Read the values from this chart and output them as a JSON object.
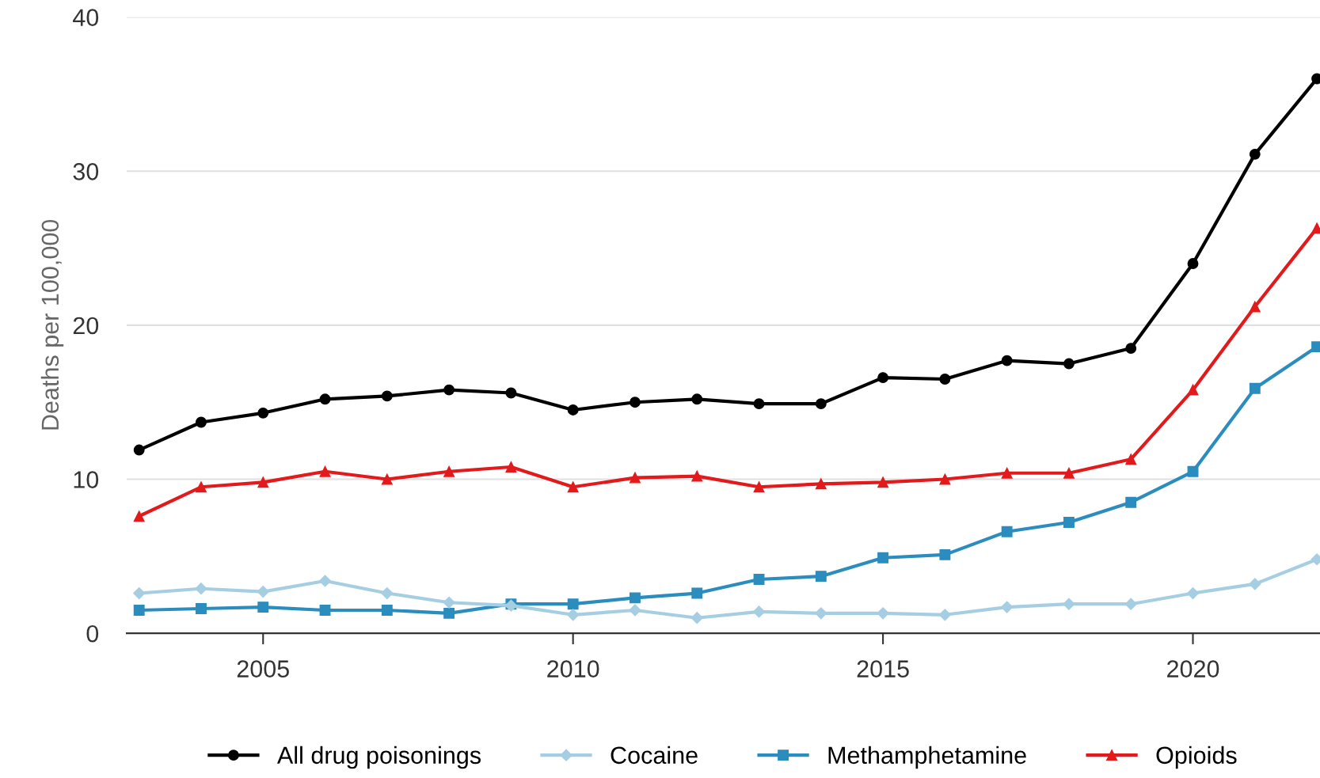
{
  "chart_data": {
    "type": "line",
    "ylabel": "Deaths per 100,000",
    "x": [
      2003,
      2004,
      2005,
      2006,
      2007,
      2008,
      2009,
      2010,
      2011,
      2012,
      2013,
      2014,
      2015,
      2016,
      2017,
      2018,
      2019,
      2020,
      2021,
      2022
    ],
    "series": [
      {
        "name": "All drug poisonings",
        "color": "#000000",
        "marker": "circle",
        "values": [
          11.9,
          13.7,
          14.3,
          15.2,
          15.4,
          15.8,
          15.6,
          14.5,
          15.0,
          15.2,
          14.9,
          14.9,
          16.6,
          16.5,
          17.7,
          17.5,
          18.5,
          24.0,
          31.1,
          36.0
        ]
      },
      {
        "name": "Cocaine",
        "color": "#a6cee3",
        "marker": "diamond",
        "values": [
          2.6,
          2.9,
          2.7,
          3.4,
          2.6,
          2.0,
          1.8,
          1.2,
          1.5,
          1.0,
          1.4,
          1.3,
          1.3,
          1.2,
          1.7,
          1.9,
          1.9,
          2.6,
          3.2,
          4.8
        ]
      },
      {
        "name": "Methamphetamine",
        "color": "#2b8cbe",
        "marker": "square",
        "values": [
          1.5,
          1.6,
          1.7,
          1.5,
          1.5,
          1.3,
          1.9,
          1.9,
          2.3,
          2.6,
          3.5,
          3.7,
          4.9,
          5.1,
          6.6,
          7.2,
          8.5,
          10.5,
          15.9,
          18.6
        ]
      },
      {
        "name": "Opioids",
        "color": "#e31a1c",
        "marker": "triangle",
        "values": [
          7.6,
          9.5,
          9.8,
          10.5,
          10.0,
          10.5,
          10.8,
          9.5,
          10.1,
          10.2,
          9.5,
          9.7,
          9.8,
          10.0,
          10.4,
          10.4,
          11.3,
          15.8,
          21.2,
          26.3
        ]
      }
    ],
    "xlim": [
      2002.8,
      2022.05
    ],
    "xticks": [
      2005,
      2010,
      2015,
      2020
    ],
    "ylim": [
      0,
      40
    ],
    "yticks": [
      0,
      10,
      20,
      30,
      40
    ],
    "grid": "y",
    "legend": "bottom",
    "line_style": "solid"
  }
}
